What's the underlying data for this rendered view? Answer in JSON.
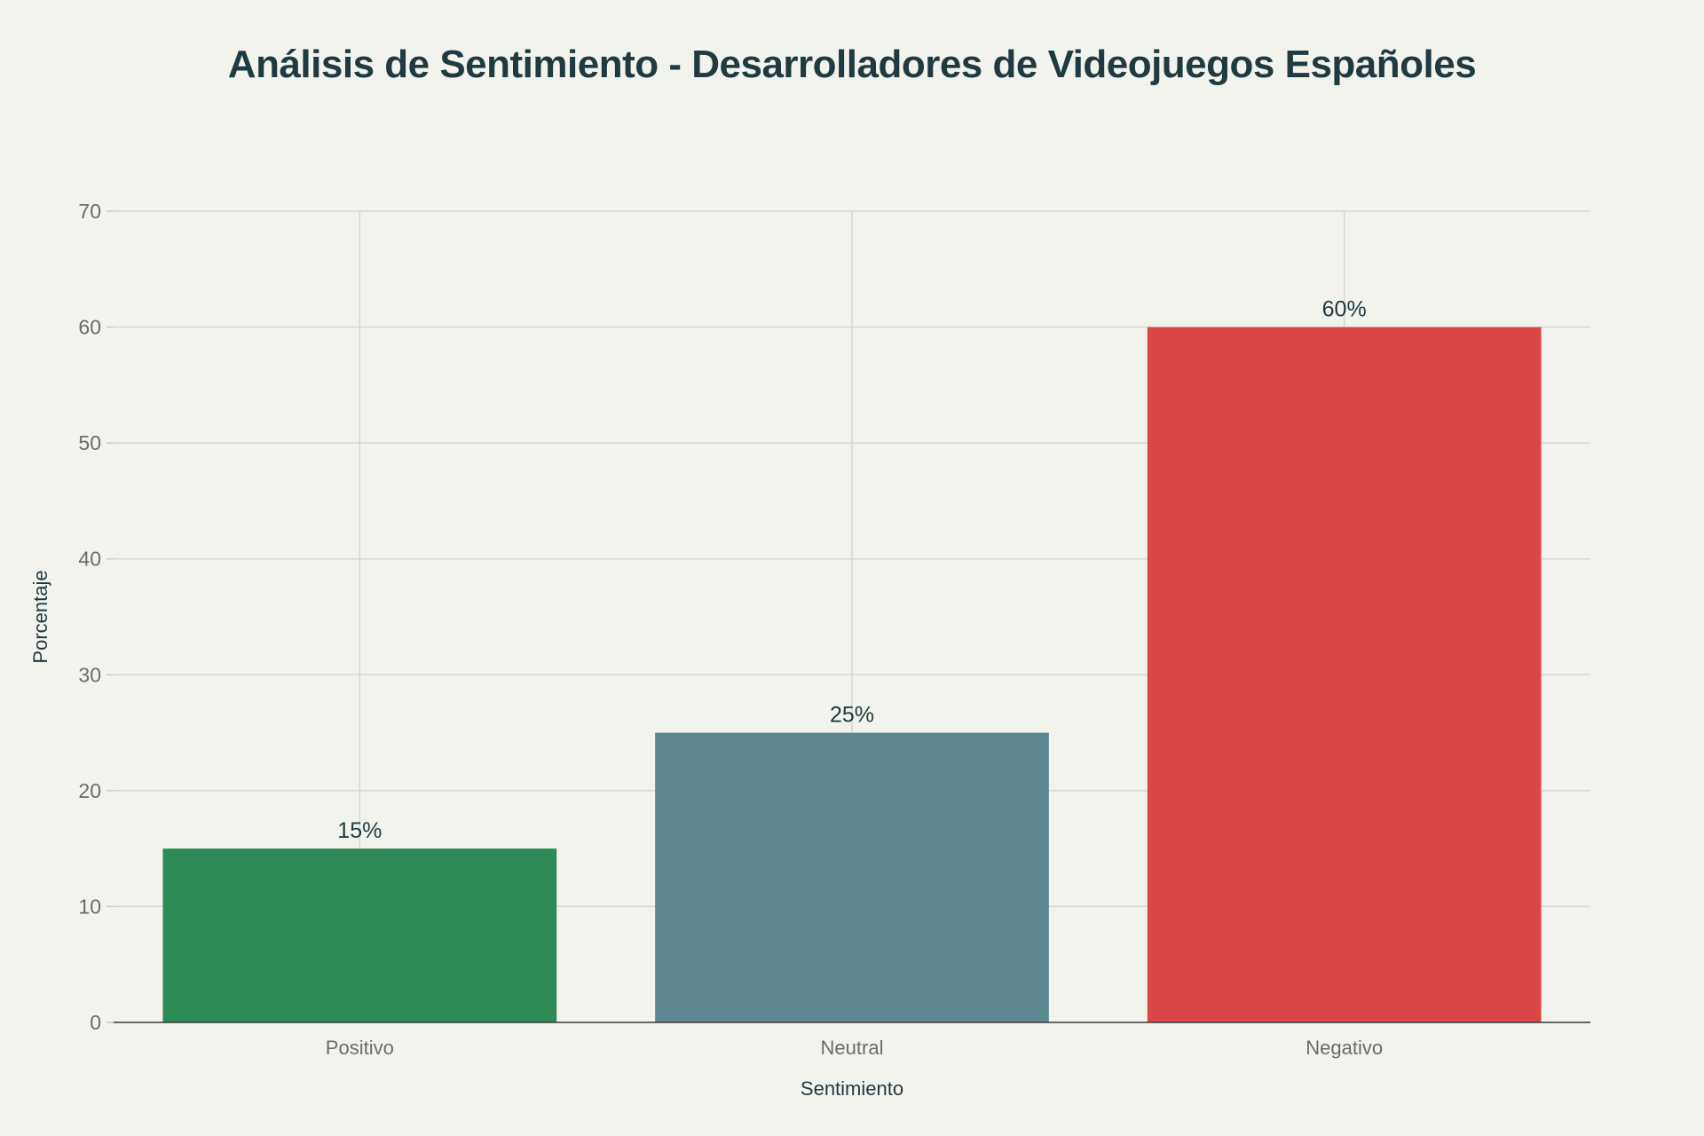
{
  "chart_data": {
    "type": "bar",
    "title": "Análisis de Sentimiento - Desarrolladores de Videojuegos Españoles",
    "xlabel": "Sentimiento",
    "ylabel": "Porcentaje",
    "categories": [
      "Positivo",
      "Neutral",
      "Negativo"
    ],
    "values": [
      15,
      25,
      60
    ],
    "value_labels": [
      "15%",
      "25%",
      "60%"
    ],
    "colors": [
      "#2e8b57",
      "#5e8890",
      "#db4646"
    ],
    "ylim": [
      0,
      70
    ],
    "yticks": [
      0,
      10,
      20,
      30,
      40,
      50,
      60,
      70
    ],
    "grid": true,
    "legend": "none"
  }
}
